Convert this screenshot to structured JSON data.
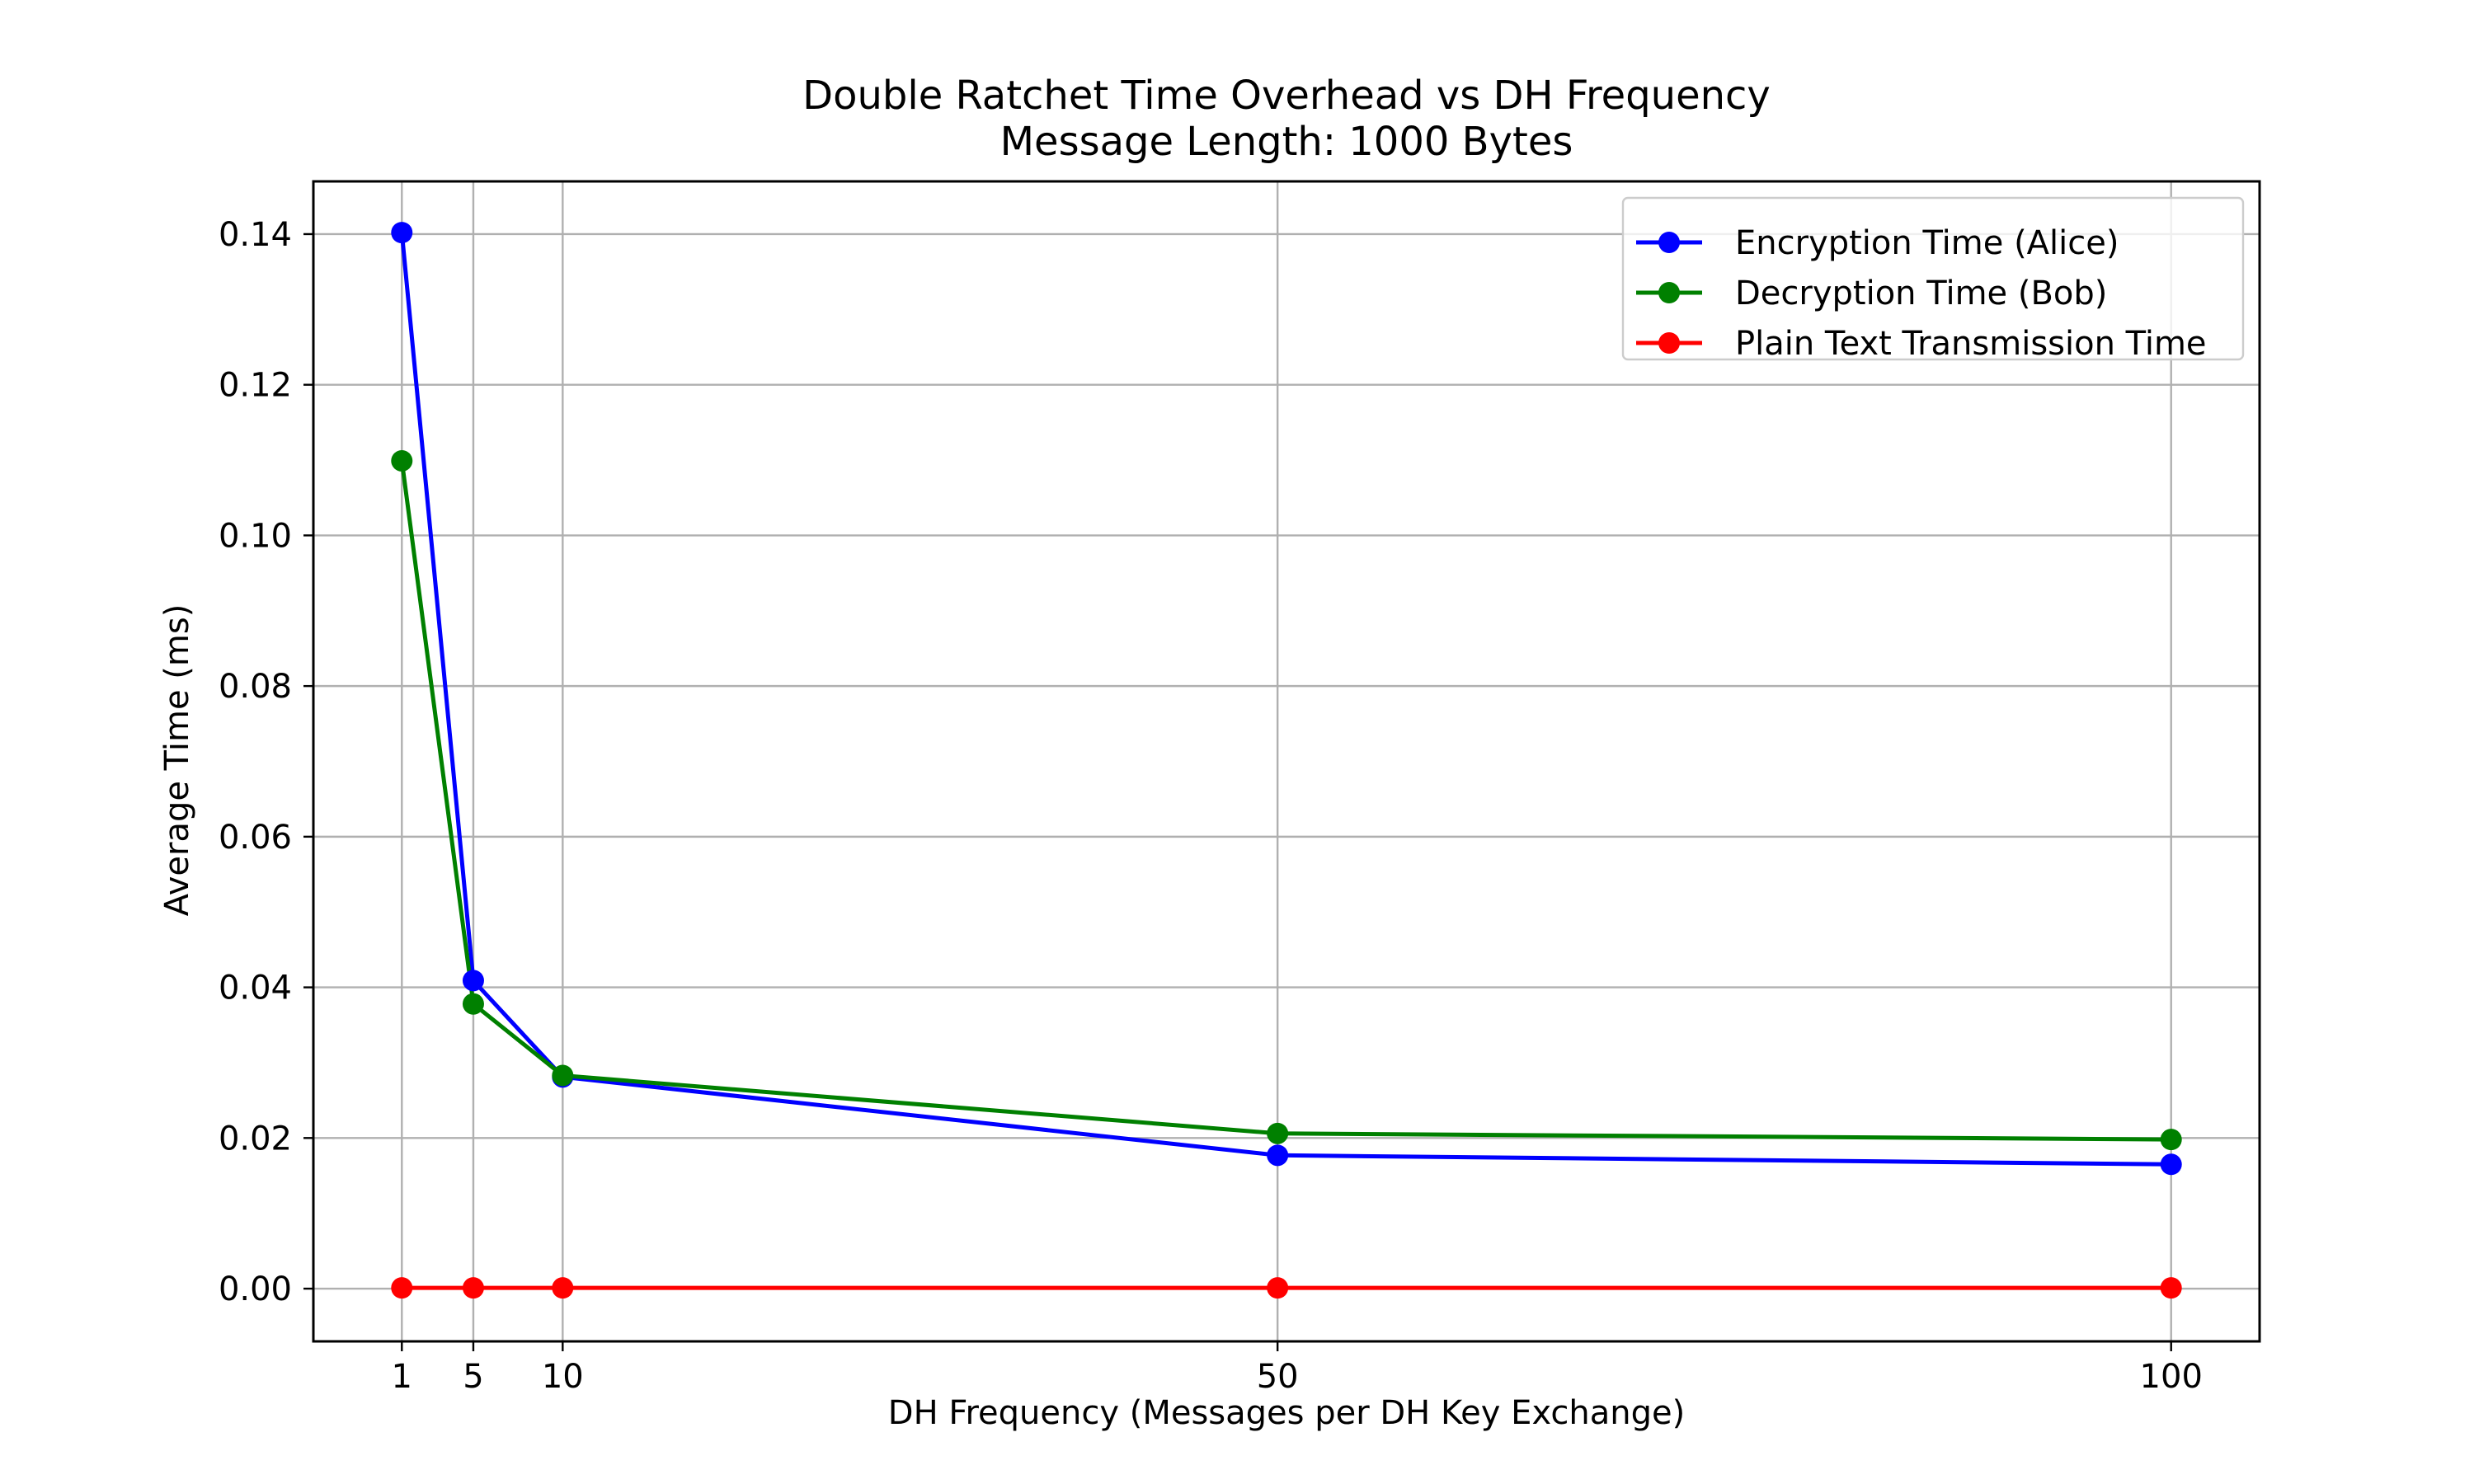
{
  "chart_data": {
    "type": "line",
    "title": "Double Ratchet Time Overhead vs DH Frequency",
    "subtitle": "Message Length: 1000 Bytes",
    "xlabel": "DH Frequency (Messages per DH Key Exchange)",
    "ylabel": "Average Time (ms)",
    "x": [
      1,
      5,
      10,
      50,
      100
    ],
    "xticks": [
      "1",
      "5",
      "10",
      "50",
      "100"
    ],
    "xlim": [
      -3.95,
      104.95
    ],
    "yticks": [
      "0.00",
      "0.02",
      "0.04",
      "0.06",
      "0.08",
      "0.10",
      "0.12",
      "0.14"
    ],
    "ylim": [
      -0.007,
      0.147
    ],
    "grid": true,
    "legend_position": "top-right",
    "series": [
      {
        "name": "Encryption Time (Alice)",
        "color": "#0000ff",
        "marker": "circle",
        "values": [
          0.1402,
          0.0409,
          0.0281,
          0.0177,
          0.0165
        ]
      },
      {
        "name": "Decryption Time (Bob)",
        "color": "#008000",
        "marker": "circle",
        "values": [
          0.1099,
          0.0378,
          0.0283,
          0.0206,
          0.0198
        ]
      },
      {
        "name": "Plain Text Transmission Time",
        "color": "#ff0000",
        "marker": "circle",
        "values": [
          0.0001,
          0.0001,
          0.0001,
          0.0001,
          0.0001
        ]
      }
    ]
  }
}
